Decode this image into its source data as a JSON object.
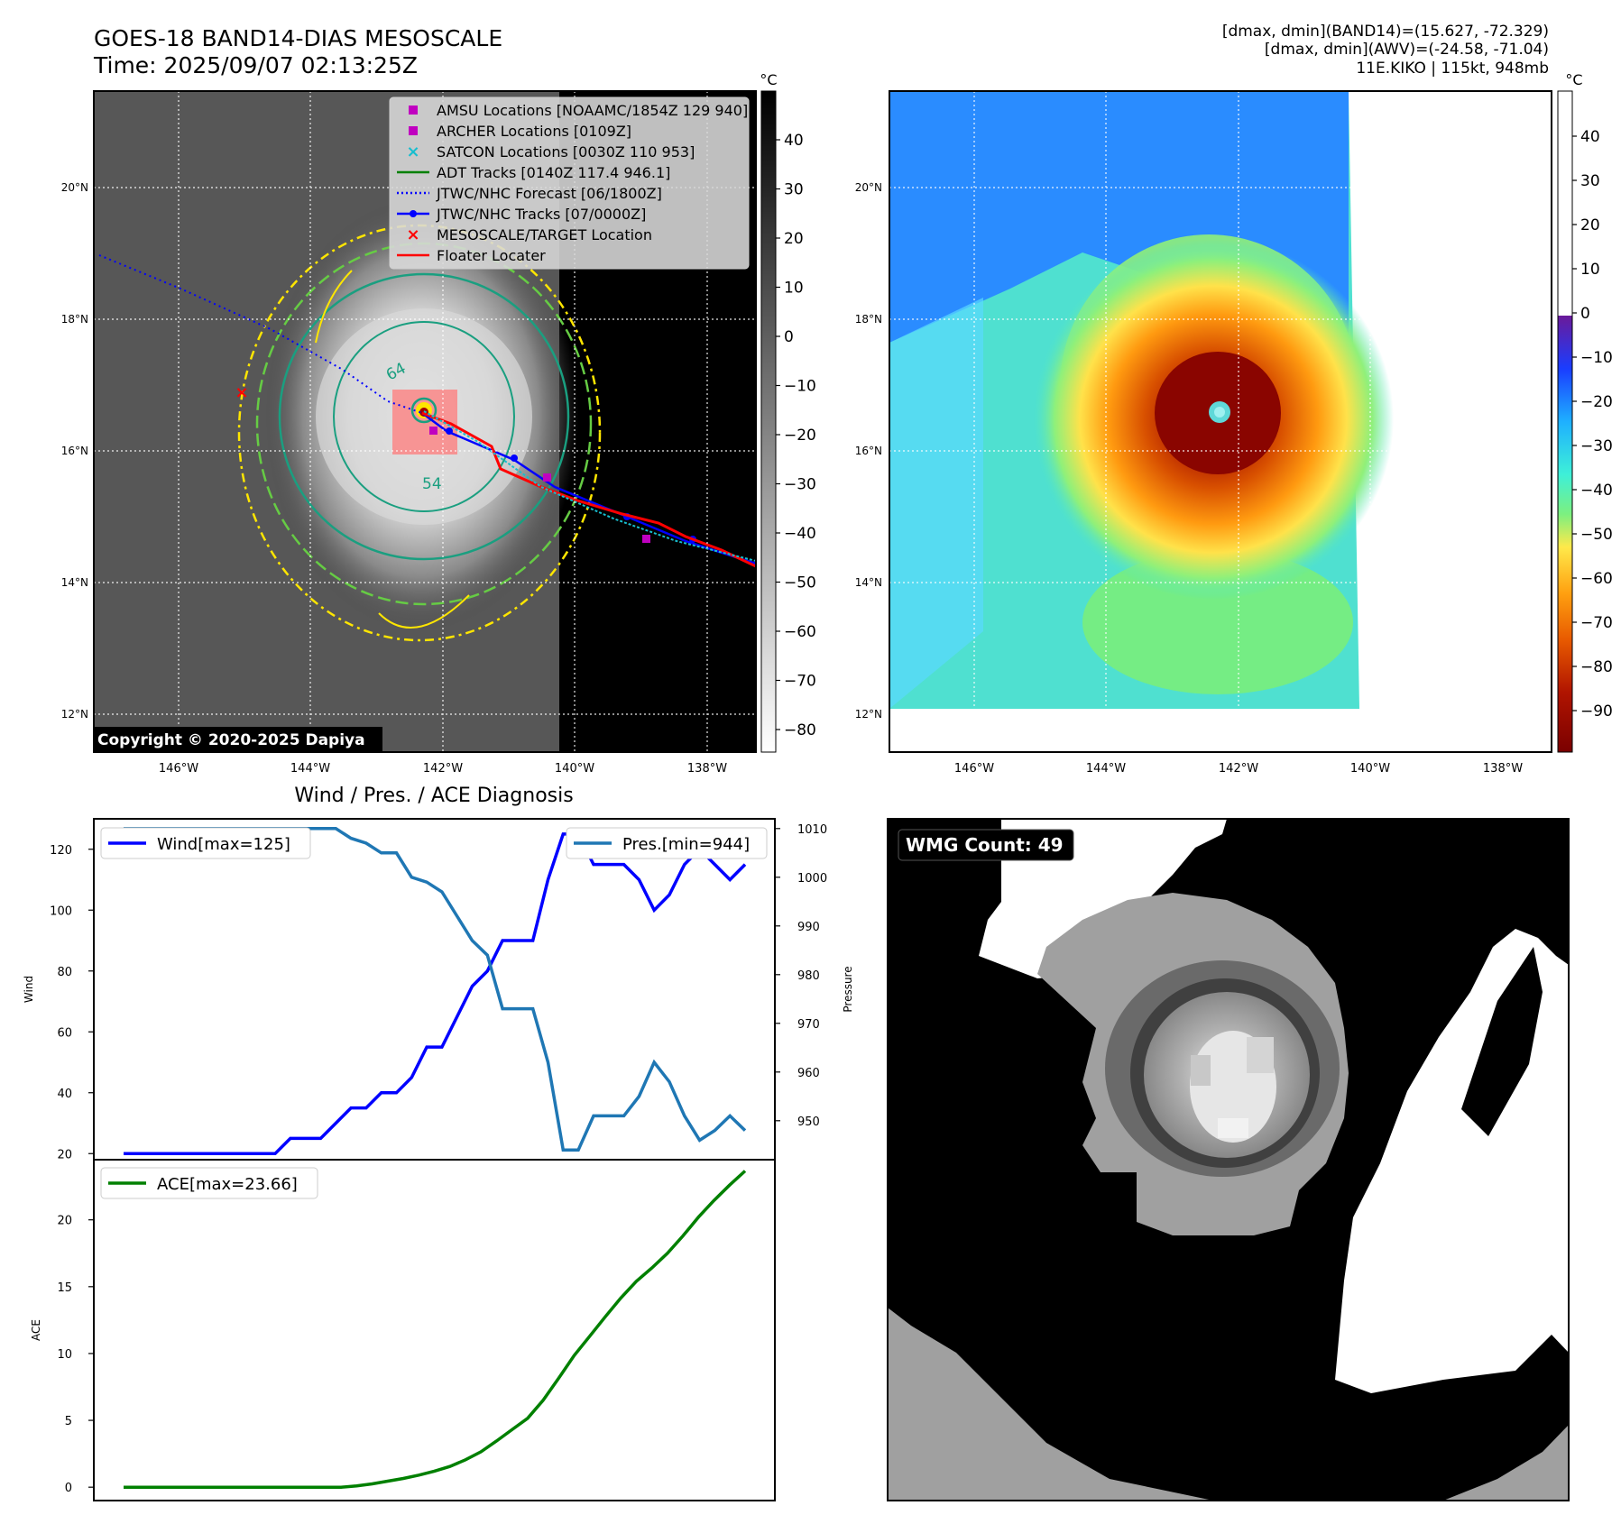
{
  "header": {
    "title_line1": "GOES-18 BAND14-DIAS MESOSCALE",
    "title_line2": "Time: 2025/09/07 02:13:25Z",
    "stats_line1": "[dmax, dmin](BAND14)=(15.627, -72.329)",
    "stats_line2": "[dmax, dmin](AWV)=(-24.58, -71.04)",
    "stats_line3": "11E.KIKO | 115kt, 948mb"
  },
  "map": {
    "lon_ticks": [
      "146°W",
      "144°W",
      "142°W",
      "140°W",
      "138°W"
    ],
    "lat_ticks": [
      "20°N",
      "18°N",
      "16°N",
      "14°N",
      "12°N"
    ],
    "copyright": "Copyright © 2020-2025 Dapiya",
    "contour_labels": [
      "64",
      "54"
    ],
    "legend": [
      {
        "label": "AMSU Locations [NOAAMC/1854Z 129 940]",
        "color": "#c000c0",
        "marker": "square"
      },
      {
        "label": "ARCHER Locations [0109Z]",
        "color": "#c000c0",
        "marker": "square"
      },
      {
        "label": "SATCON Locations [0030Z 110 953]",
        "color": "#17becf",
        "marker": "x"
      },
      {
        "label": "ADT Tracks [0140Z 117.4 946.1]",
        "color": "#008000",
        "marker": "line"
      },
      {
        "label": "JTWC/NHC Forecast [06/1800Z]",
        "color": "#0000ff",
        "marker": "dotted"
      },
      {
        "label": "JTWC/NHC Tracks [07/0000Z]",
        "color": "#0000ff",
        "marker": "line-dot"
      },
      {
        "label": "MESOSCALE/TARGET Location",
        "color": "#ff0000",
        "marker": "x"
      },
      {
        "label": "Floater Locater",
        "color": "#ff0000",
        "marker": "line"
      }
    ]
  },
  "colorbar_gray": {
    "unit": "°C",
    "ticks": [
      "40",
      "30",
      "20",
      "10",
      "0",
      "−10",
      "−20",
      "−30",
      "−40",
      "−50",
      "−60",
      "−70",
      "−80"
    ]
  },
  "colorbar_color": {
    "unit": "°C",
    "ticks": [
      "40",
      "30",
      "20",
      "10",
      "0",
      "−10",
      "−20",
      "−30",
      "−40",
      "−50",
      "−60",
      "−70",
      "−80",
      "−90"
    ]
  },
  "diagnosis_title": "Wind / Pres. / ACE Diagnosis",
  "wmg": {
    "label": "WMG Count: 49"
  },
  "colors": {
    "wind": "#0000ff",
    "pressure": "#1f77b4",
    "ace": "#008000",
    "track_red": "#ff0000",
    "contour_yellow": "#ffe600",
    "contour_green": "#66cc44",
    "contour_teal": "#1a9f80"
  },
  "chart_data": [
    {
      "type": "line",
      "title": "Wind / Pres. / ACE Diagnosis",
      "xlabel": "",
      "ylabel": "Wind",
      "ylabel_right": "Pressure",
      "ylim": [
        18,
        130
      ],
      "ylim_right": [
        942,
        1012
      ],
      "yticks": [
        20,
        40,
        60,
        80,
        100,
        120
      ],
      "yticks_right": [
        950,
        960,
        970,
        980,
        990,
        1000,
        1010
      ],
      "series": [
        {
          "name": "Wind[max=125]",
          "axis": "left",
          "color": "#0000ff",
          "values": [
            20,
            20,
            20,
            20,
            20,
            20,
            20,
            20,
            20,
            20,
            20,
            25,
            25,
            25,
            30,
            35,
            35,
            40,
            40,
            45,
            55,
            55,
            65,
            75,
            80,
            90,
            90,
            90,
            110,
            125,
            125,
            115,
            115,
            115,
            110,
            100,
            105,
            115,
            120,
            115,
            110,
            115
          ]
        },
        {
          "name": "Pres.[min=944]",
          "axis": "right",
          "color": "#1f77b4",
          "values": [
            1010,
            1010,
            1010,
            1010,
            1010,
            1010,
            1010,
            1010,
            1010,
            1010,
            1010,
            1010,
            1010,
            1010,
            1010,
            1008,
            1007,
            1005,
            1005,
            1000,
            999,
            997,
            992,
            987,
            984,
            973,
            973,
            973,
            962,
            944,
            944,
            951,
            951,
            951,
            955,
            962,
            958,
            951,
            946,
            948,
            951,
            948
          ]
        }
      ]
    },
    {
      "type": "line",
      "title": "",
      "ylabel": "ACE",
      "ylim": [
        -1,
        24.5
      ],
      "yticks": [
        0,
        5,
        10,
        15,
        20
      ],
      "series": [
        {
          "name": "ACE[max=23.66]",
          "color": "#008000",
          "values": [
            0,
            0,
            0,
            0,
            0,
            0,
            0,
            0,
            0,
            0,
            0,
            0,
            0,
            0,
            0,
            0.1,
            0.25,
            0.45,
            0.65,
            0.9,
            1.2,
            1.55,
            2.05,
            2.65,
            3.45,
            4.3,
            5.15,
            6.5,
            8.15,
            9.85,
            11.3,
            12.75,
            14.15,
            15.4,
            16.4,
            17.5,
            18.8,
            20.2,
            21.45,
            22.6,
            23.66
          ]
        }
      ]
    }
  ]
}
